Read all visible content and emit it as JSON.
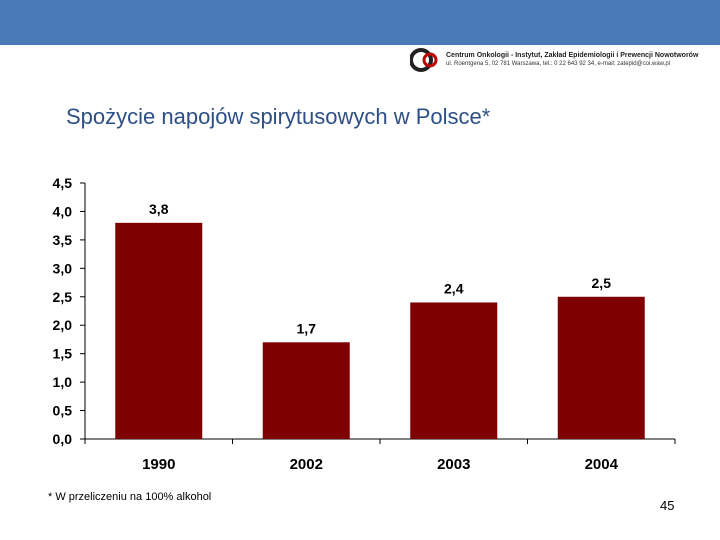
{
  "header": {
    "band_color": "#4a7ab8",
    "org_name": "Centrum Onkologii - Instytut, Zakład Epidemiologii i Prewencji Nowotworów",
    "org_address": "ul. Roentgena 5, 02 781 Warszawa, tel.: 0 22 643 92 34, e-mail: zatepid@coi.waw.pl"
  },
  "title": "Spożycie napojów spirytusowych w Polsce*",
  "footnote": "* W przeliczeniu na 100% alkohol",
  "page_number": "45",
  "chart_data": {
    "type": "bar",
    "title": "",
    "xlabel": "",
    "ylabel": "",
    "categories": [
      "1990",
      "2002",
      "2003",
      "2004"
    ],
    "values": [
      3.8,
      1.7,
      2.4,
      2.5
    ],
    "data_labels": [
      "3,8",
      "1,7",
      "2,4",
      "2,5"
    ],
    "ylim": [
      0,
      4.5
    ],
    "yticks": [
      "0,0",
      "0,5",
      "1,0",
      "1,5",
      "2,0",
      "2,5",
      "3,0",
      "3,5",
      "4,0",
      "4,5"
    ],
    "bar_color": "#7f0000",
    "grid": false,
    "legend": false
  }
}
